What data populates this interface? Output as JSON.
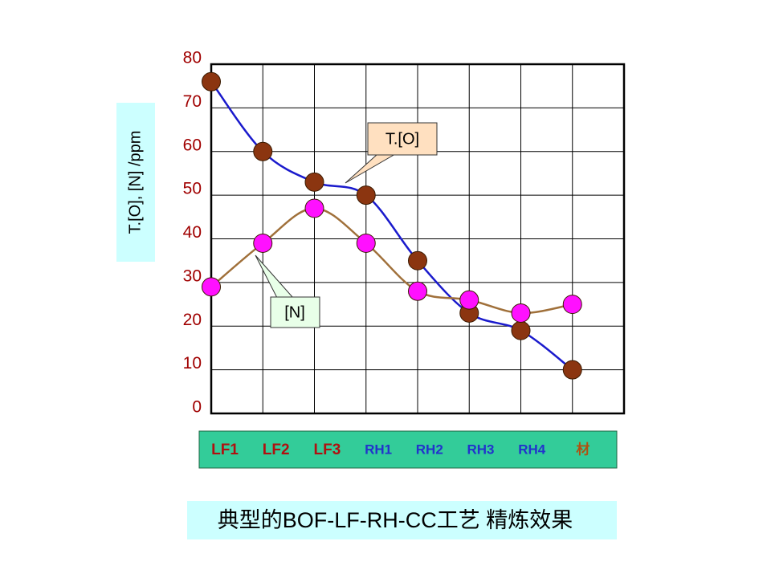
{
  "chart_data": {
    "type": "line",
    "title": "典型的BOF-LF-RH-CC工艺 精炼效果",
    "y_label": "T.[O], [N]  /ppm",
    "categories": [
      "LF1",
      "LF2",
      "LF3",
      "RH1",
      "RH2",
      "RH3",
      "RH4",
      "材"
    ],
    "category_colors": [
      "#b01010",
      "#b01010",
      "#b01010",
      "#2233cc",
      "#2233cc",
      "#2233cc",
      "#2233cc",
      "#b05010"
    ],
    "series": [
      {
        "name": "T.[O]",
        "color": "#1a1acc",
        "marker_color": "#8b3510",
        "values": [
          76,
          60,
          53,
          50,
          35,
          23,
          19,
          10
        ]
      },
      {
        "name": "[N]",
        "color": "#a0703a",
        "marker_color": "#ff10ff",
        "values": [
          29,
          39,
          47,
          39,
          28,
          26,
          23,
          25
        ]
      }
    ],
    "ylim": [
      0,
      80
    ],
    "yticks": [
      0,
      10,
      20,
      30,
      40,
      50,
      60,
      70,
      80
    ],
    "grid": true,
    "smooth": true
  }
}
